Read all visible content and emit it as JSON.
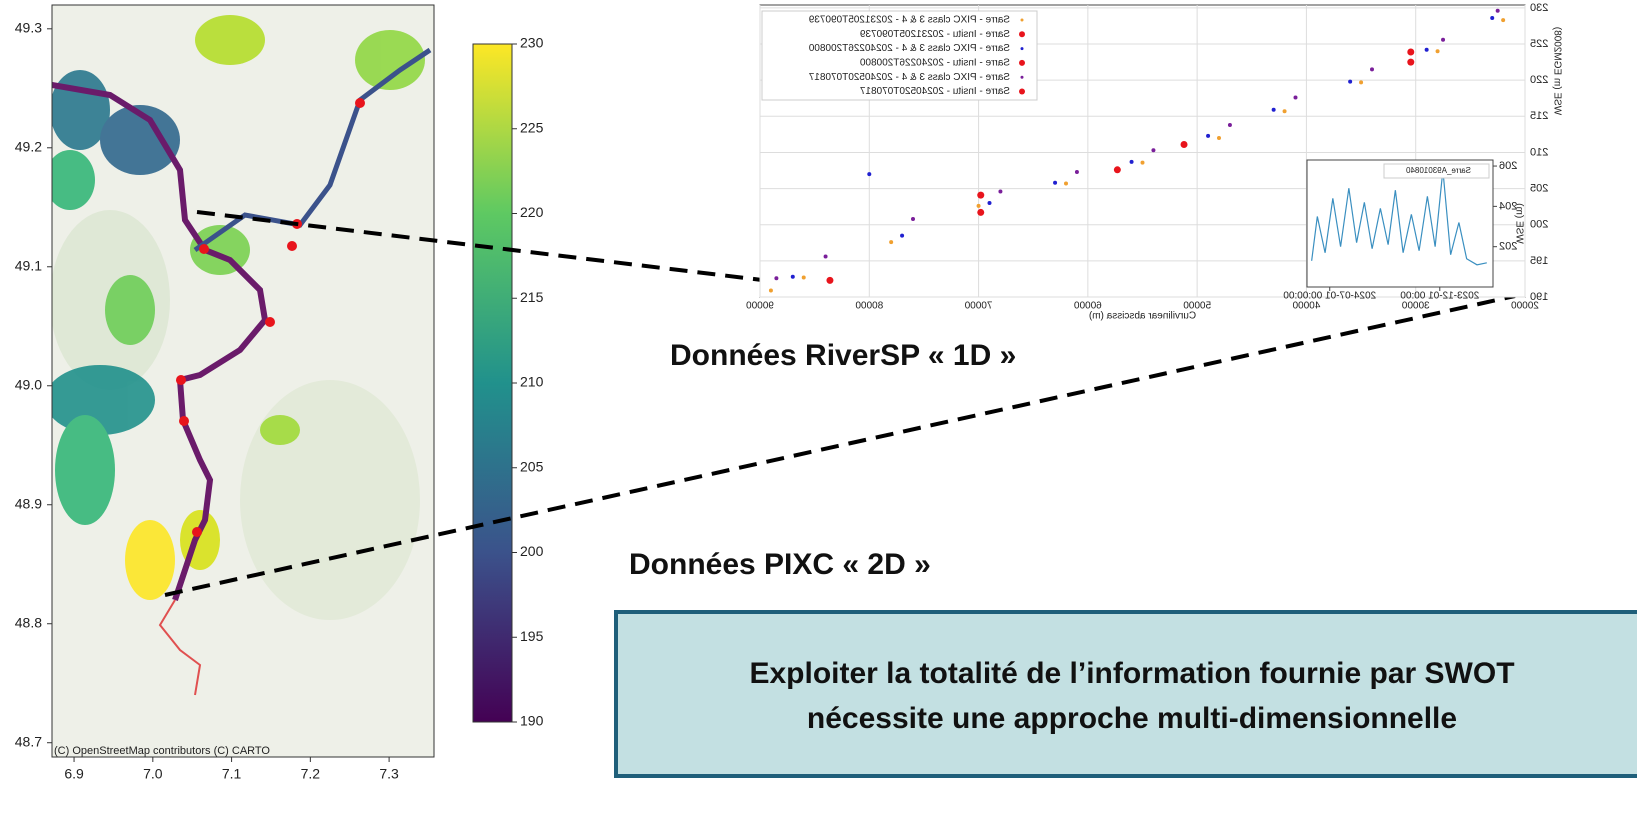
{
  "map": {
    "attribution": "(C) OpenStreetMap contributors (C) CARTO",
    "xlim": [
      6.872,
      7.357
    ],
    "ylim": [
      48.688,
      49.32
    ],
    "xticks": [
      6.9,
      {
        "value": 7,
        "label": "7.0"
      },
      7.1,
      7.2,
      7.3
    ],
    "yticks": [
      48.7,
      48.8,
      48.9,
      {
        "value": 49,
        "label": "49.0"
      },
      49.1,
      49.2,
      49.3
    ],
    "colorbar": {
      "range": [
        190,
        230
      ],
      "ticks": [
        190,
        195,
        200,
        205,
        210,
        215,
        220,
        225,
        230
      ]
    }
  },
  "chart_data": {
    "type": "scatter",
    "mirrored": true,
    "grid": true,
    "legend": "upper right",
    "xlabel": "Curvilinear abscissa (m)",
    "ylabel": "WSE (m EGM2008)",
    "xlim": [
      20000,
      90000
    ],
    "ylim": [
      190,
      230.4
    ],
    "xticks": [
      20000,
      30000,
      40000,
      50000,
      60000,
      70000,
      80000,
      90000
    ],
    "yticks": [
      190,
      195,
      200,
      205,
      210,
      215,
      220,
      225,
      230
    ],
    "series": [
      {
        "name": "Sarre - PIXC class 3 & 4 - 20231205T090739",
        "color": "#f0a030",
        "x": [
          22000,
          28000,
          35000,
          42000,
          48000,
          55000,
          62000,
          70000,
          78000,
          86000,
          89000
        ],
        "values": [
          228.3,
          224.0,
          219.7,
          215.7,
          212.0,
          208.6,
          205.7,
          202.6,
          197.6,
          192.7,
          190.9
        ]
      },
      {
        "name": "Sarre - Insitu - 20231205T090739",
        "color": "#e8141c",
        "x": [
          83600,
          57300
        ],
        "values": [
          192.3,
          207.6
        ]
      },
      {
        "name": "Sarre - PIXC class 3 & 4 - 20240226T200800",
        "color": "#2020d0",
        "x": [
          23000,
          29000,
          36000,
          43000,
          49000,
          56000,
          63000,
          69000,
          77000,
          80000,
          87000
        ],
        "values": [
          228.6,
          224.2,
          219.8,
          215.9,
          212.3,
          208.7,
          205.8,
          203.0,
          198.5,
          207.0,
          192.8
        ]
      },
      {
        "name": "Sarre - Insitu - 20240226T200800",
        "color": "#e8141c",
        "x": [
          69800,
          51200,
          30450
        ],
        "values": [
          201.7,
          211.1,
          222.5
        ]
      },
      {
        "name": "Sarre - PIXC class 3 & 4 - 20240520T070817",
        "color": "#7a1f9a",
        "x": [
          22500,
          27500,
          34000,
          41000,
          47000,
          54000,
          61000,
          68000,
          76000,
          84000,
          88500
        ],
        "values": [
          229.6,
          225.6,
          221.5,
          217.6,
          213.8,
          210.3,
          207.3,
          204.6,
          200.8,
          195.6,
          192.6
        ]
      },
      {
        "name": "Sarre - Insitu - 20240520T070817",
        "color": "#e8141c",
        "x": [
          69800,
          30450
        ],
        "values": [
          204.1,
          223.9
        ]
      }
    ],
    "inset": {
      "type": "line",
      "legend": "Sarre_A93010840",
      "ylabel": "WSE (m)",
      "color": "#3a8fc0",
      "xlim": [
        "2023-08-20",
        "2024-08-14"
      ],
      "ylim": [
        200,
        206.3
      ],
      "xticks": [
        {
          "value": "2023-12-01",
          "label": "2023-12-01 00:00"
        },
        {
          "value": "2024-07-01",
          "label": "2024-07-01 00:00:00"
        }
      ],
      "yticks": [
        202,
        204,
        206
      ],
      "x": [
        "2023-09-01",
        "2023-09-20",
        "2023-10-10",
        "2023-10-25",
        "2023-11-10",
        "2023-11-25",
        "2023-12-10",
        "2023-12-25",
        "2024-01-10",
        "2024-01-25",
        "2024-02-10",
        "2024-02-25",
        "2024-03-10",
        "2024-03-25",
        "2024-04-10",
        "2024-04-25",
        "2024-05-10",
        "2024-05-25",
        "2024-06-10",
        "2024-06-25",
        "2024-07-10",
        "2024-07-25",
        "2024-08-05"
      ],
      "values": [
        201.2,
        201.1,
        201.4,
        203.2,
        201.6,
        205.8,
        202.0,
        204.5,
        201.8,
        203.6,
        201.7,
        204.8,
        202.1,
        203.9,
        201.9,
        204.2,
        202.2,
        204.9,
        202.0,
        204.4,
        201.7,
        203.5,
        201.3
      ]
    }
  },
  "labels": {
    "one_d": "Données RiverSP « 1D »",
    "two_d": "Données PIXC « 2D »"
  },
  "callout": {
    "lines": [
      "Exploiter la totalité de l’information fournie par SWOT",
      "nécessite une approche multi-dimensionnelle"
    ]
  }
}
